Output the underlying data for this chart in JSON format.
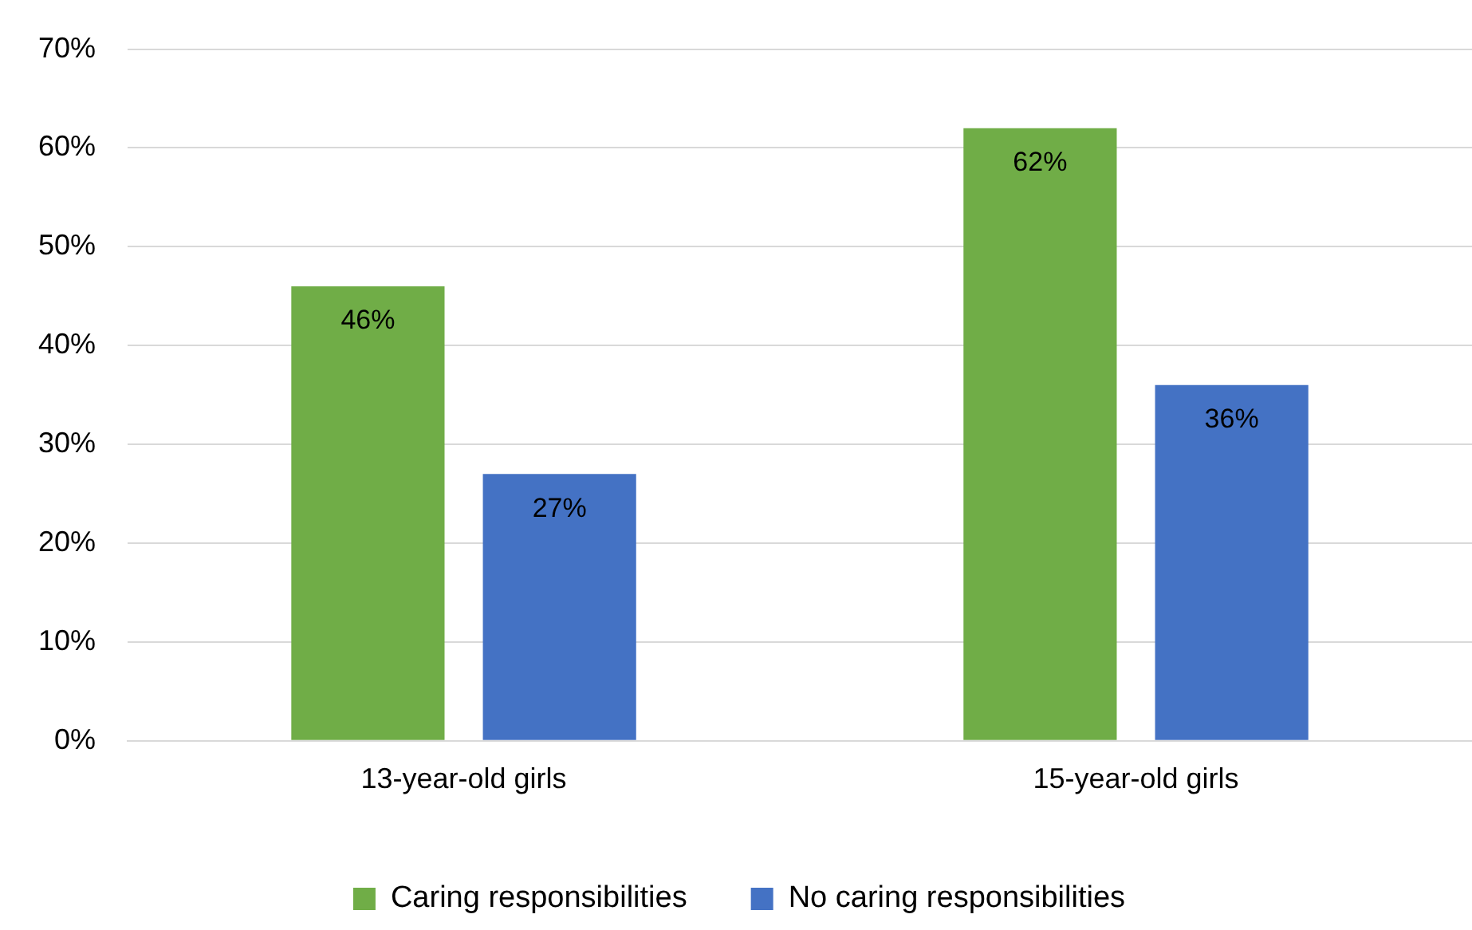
{
  "chart_data": {
    "type": "bar",
    "categories": [
      "13-year-old girls",
      "15-year-old girls"
    ],
    "series": [
      {
        "name": "Caring responsibilities",
        "color": "#70ad47",
        "values": [
          46,
          62
        ],
        "value_labels": [
          "46%",
          "62%"
        ]
      },
      {
        "name": "No caring responsibilities",
        "color": "#4472c4",
        "values": [
          27,
          36
        ],
        "value_labels": [
          "27%",
          "36%"
        ]
      }
    ],
    "ylim": [
      0,
      70
    ],
    "yticks": [
      {
        "value": 0,
        "label": "0%"
      },
      {
        "value": 10,
        "label": "10%"
      },
      {
        "value": 20,
        "label": "20%"
      },
      {
        "value": 30,
        "label": "30%"
      },
      {
        "value": 40,
        "label": "40%"
      },
      {
        "value": 50,
        "label": "50%"
      },
      {
        "value": 60,
        "label": "60%"
      },
      {
        "value": 70,
        "label": "70%"
      }
    ],
    "grid": "y",
    "legend": "bottom"
  }
}
